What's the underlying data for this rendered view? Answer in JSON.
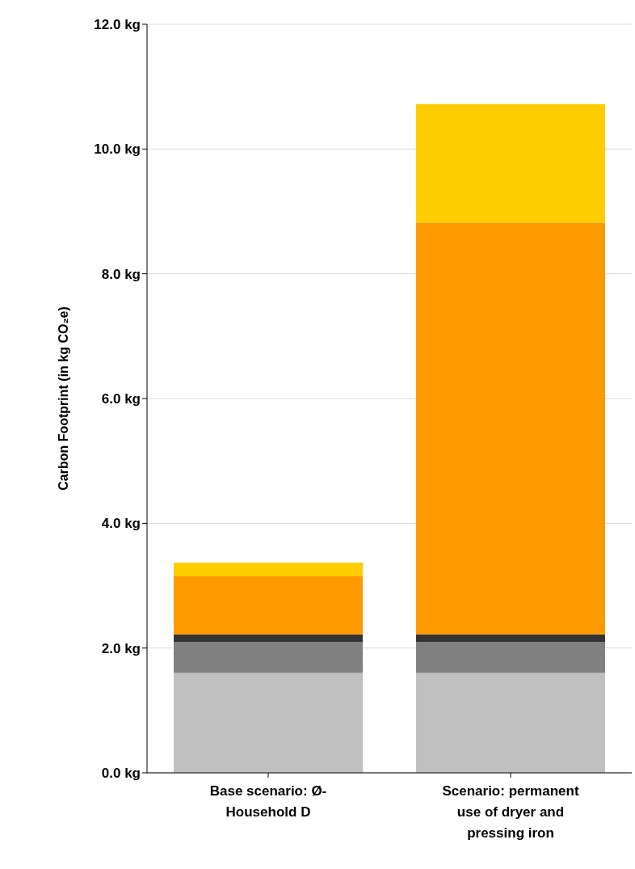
{
  "chart_data": {
    "type": "bar",
    "stacked": true,
    "ylabel": "Carbon Footprint (in kg CO₂e)",
    "categories": [
      "Base scenario: Ø-Household D",
      "Scenario: permanent use of dryer and pressing iron"
    ],
    "series": [
      {
        "color": "#c0c0c0",
        "values": [
          1.6,
          1.6
        ]
      },
      {
        "color": "#808080",
        "values": [
          0.5,
          0.5
        ]
      },
      {
        "color": "#333333",
        "values": [
          0.12,
          0.12
        ]
      },
      {
        "color": "#ff9900",
        "values": [
          0.93,
          6.6
        ]
      },
      {
        "color": "#ffcc00",
        "values": [
          0.22,
          1.9
        ]
      }
    ],
    "ylim": [
      0,
      12
    ],
    "yticks": [
      {
        "value": 0,
        "label": "0.0 kg"
      },
      {
        "value": 2,
        "label": "2.0 kg"
      },
      {
        "value": 4,
        "label": "4.0 kg"
      },
      {
        "value": 6,
        "label": "6.0 kg"
      },
      {
        "value": 8,
        "label": "8.0 kg"
      },
      {
        "value": 10,
        "label": "10.0 kg"
      },
      {
        "value": 12,
        "label": "12.0 kg"
      }
    ],
    "grid": "y",
    "legend": false
  }
}
